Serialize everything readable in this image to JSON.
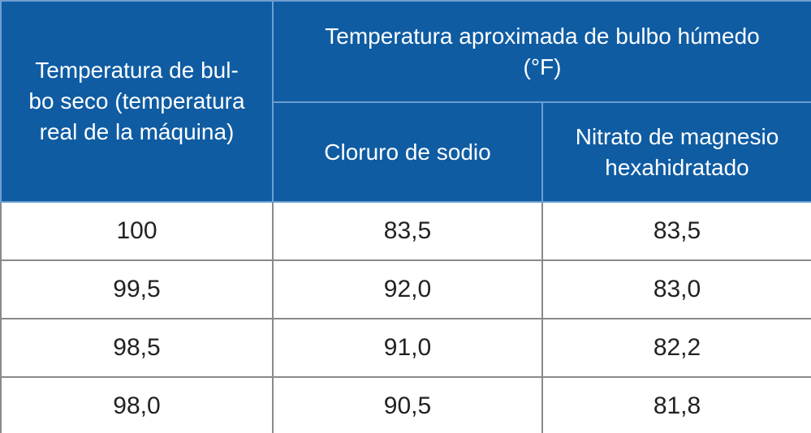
{
  "table": {
    "header": {
      "first_column": "Temperatura de bul-\nbo seco (temperatura\nreal de la máquina)",
      "group": "Temperatura aproximada de bulbo húmedo\n(°F)",
      "columns": [
        "Cloruro de sodio",
        "Nitrato de magnesio\nhexahidratado"
      ]
    },
    "rows": [
      [
        "100",
        "83,5",
        "83,5"
      ],
      [
        "99,5",
        "92,0",
        "83,0"
      ],
      [
        "98,5",
        "91,0",
        "82,2"
      ],
      [
        "98,0",
        "90,5",
        "81,8"
      ]
    ]
  }
}
